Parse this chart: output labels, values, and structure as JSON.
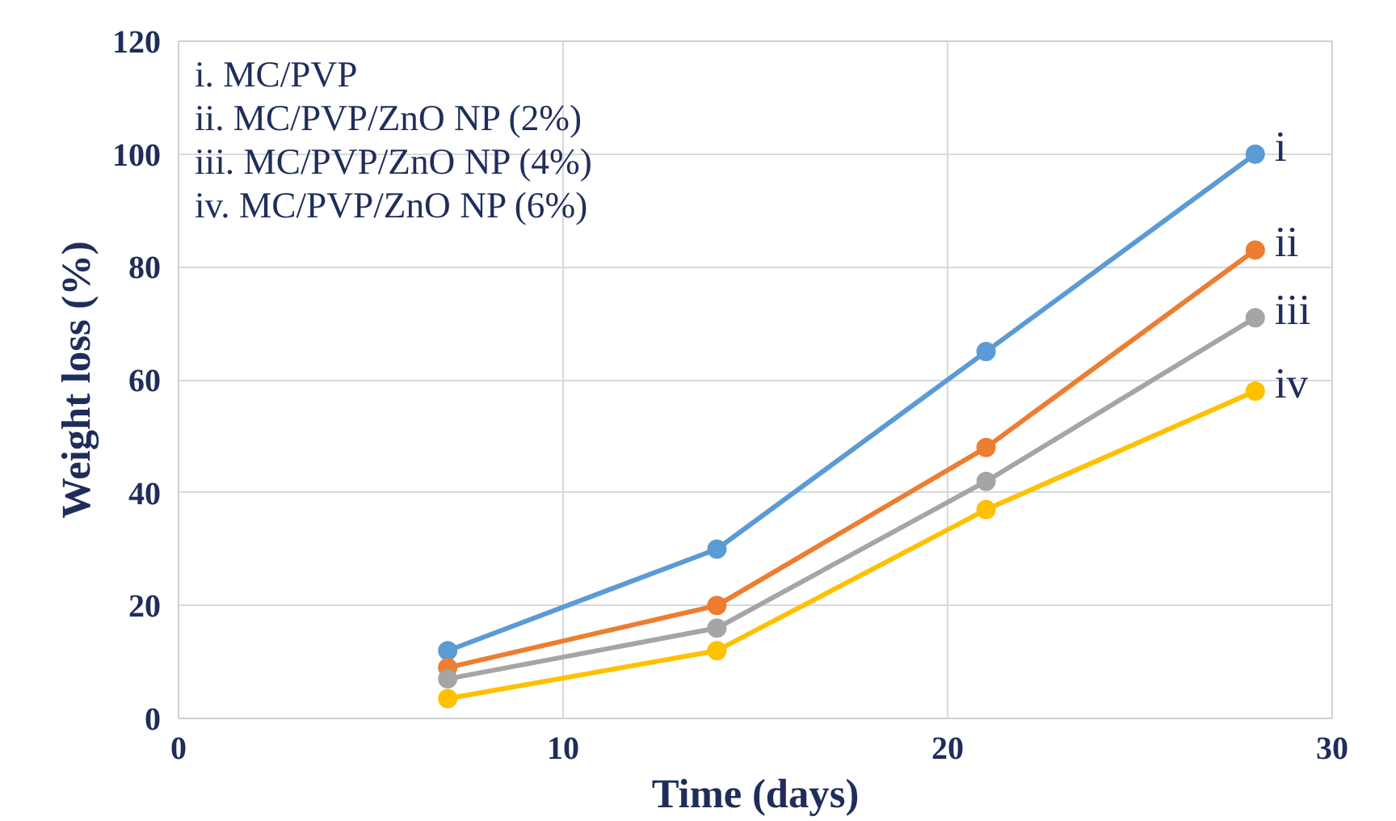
{
  "chart_data": {
    "type": "line",
    "xlabel": "Time (days)",
    "ylabel": "Weight loss (%)",
    "x": [
      7,
      14,
      21,
      28
    ],
    "series": [
      {
        "name": "i",
        "color": "#5b9bd5",
        "values": [
          12,
          30,
          65,
          100
        ]
      },
      {
        "name": "ii",
        "color": "#ed7d31",
        "values": [
          9,
          20,
          48,
          83
        ]
      },
      {
        "name": "iii",
        "color": "#a5a5a5",
        "values": [
          7,
          16,
          42,
          71
        ]
      },
      {
        "name": "iv",
        "color": "#ffc000",
        "values": [
          3.5,
          12,
          37,
          58
        ]
      }
    ],
    "annotations": [
      "i. MC/PVP",
      "ii. MC/PVP/ZnO NP (2%)",
      "iii. MC/PVP/ZnO NP (4%)",
      "iv. MC/PVP/ZnO NP (6%)"
    ],
    "xlim": [
      0,
      30
    ],
    "xticks": [
      0,
      10,
      20,
      30
    ],
    "ylim": [
      0,
      120
    ],
    "yticks": [
      0,
      20,
      40,
      60,
      80,
      100,
      120
    ],
    "grid": true,
    "marker": "circle",
    "line_style": "solid"
  }
}
